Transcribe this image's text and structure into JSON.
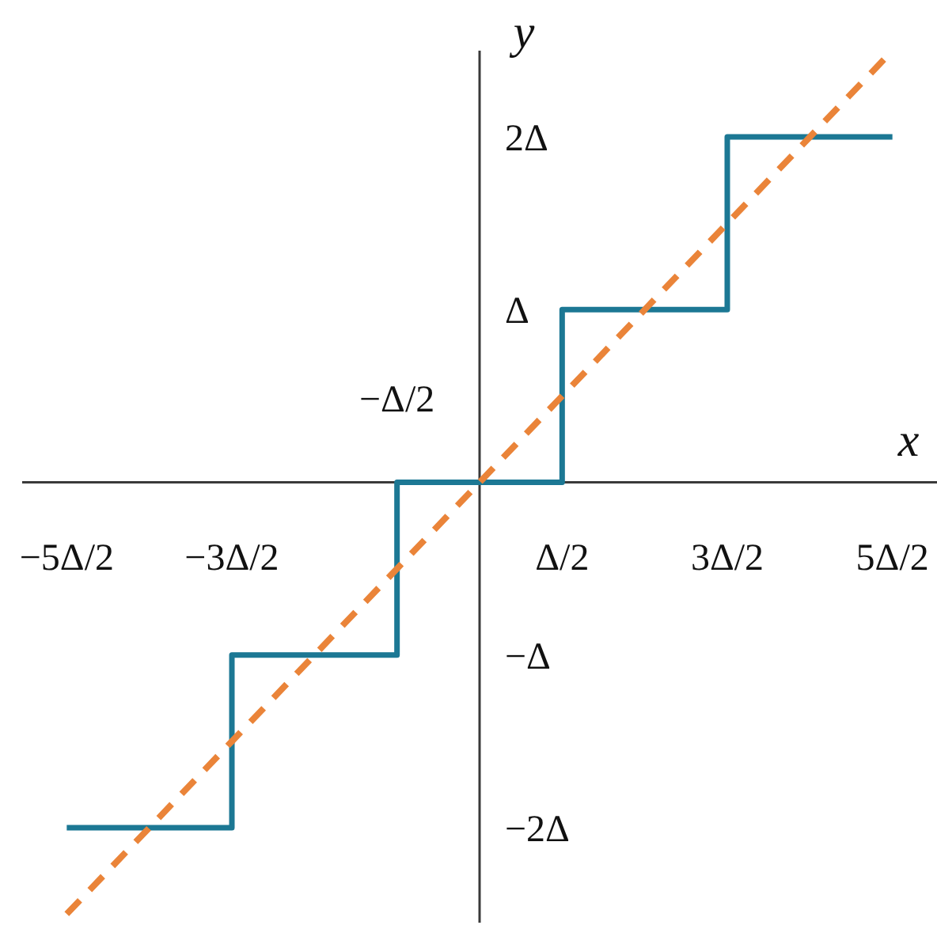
{
  "chart_data": {
    "type": "step",
    "xlabel": "x",
    "ylabel": "y",
    "categories": [
      "−5Δ/2",
      "−3Δ/2",
      "−Δ/2",
      "Δ/2",
      "3Δ/2",
      "5Δ/2"
    ],
    "ylim": [
      -2.55,
      2.5
    ],
    "yticks": [
      {
        "value": -2,
        "label": "−2Δ"
      },
      {
        "value": -1,
        "label": "−Δ"
      },
      {
        "value": 1,
        "label": "Δ"
      },
      {
        "value": 2,
        "label": "2Δ"
      }
    ],
    "series": [
      {
        "color": "#1c7894",
        "values": [
          -2,
          -1,
          0,
          1,
          2,
          2
        ]
      },
      {
        "type": "line",
        "color": "#ea8439",
        "line_style": "dashed",
        "values": [
          -2.5,
          -1.5,
          -0.5,
          0.5,
          1.5,
          2.5
        ]
      }
    ]
  }
}
